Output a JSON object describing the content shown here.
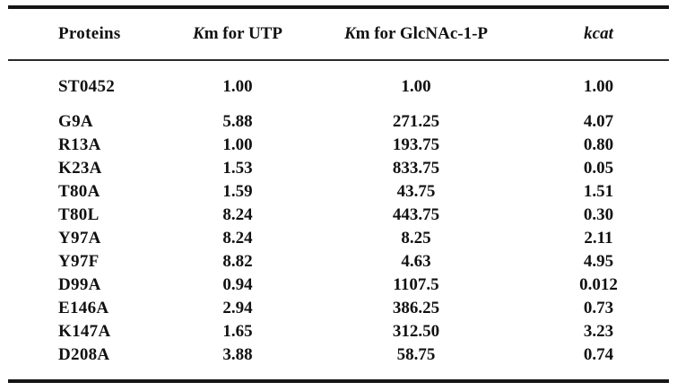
{
  "page": {
    "background": "#ffffff",
    "text_color": "#111111",
    "rule_color": "#151515"
  },
  "table": {
    "headers": [
      {
        "label": "Proteins"
      },
      {
        "italic_prefix": "K",
        "rest": "m for UTP"
      },
      {
        "italic_prefix": "K",
        "rest": "m for GlcNAc-1-P"
      },
      {
        "italic_label": "kcat"
      }
    ],
    "rows": [
      {
        "protein": "ST0452",
        "km_utp": "1.00",
        "km_glcnac": "1.00",
        "kcat": "1.00"
      },
      {
        "protein": "G9A",
        "km_utp": "5.88",
        "km_glcnac": "271.25",
        "kcat": "4.07"
      },
      {
        "protein": "R13A",
        "km_utp": "1.00",
        "km_glcnac": "193.75",
        "kcat": "0.80"
      },
      {
        "protein": "K23A",
        "km_utp": "1.53",
        "km_glcnac": "833.75",
        "kcat": "0.05"
      },
      {
        "protein": "T80A",
        "km_utp": "1.59",
        "km_glcnac": "43.75",
        "kcat": "1.51"
      },
      {
        "protein": "T80L",
        "km_utp": "8.24",
        "km_glcnac": "443.75",
        "kcat": "0.30"
      },
      {
        "protein": "Y97A",
        "km_utp": "8.24",
        "km_glcnac": "8.25",
        "kcat": "2.11"
      },
      {
        "protein": "Y97F",
        "km_utp": "8.82",
        "km_glcnac": "4.63",
        "kcat": "4.95"
      },
      {
        "protein": "D99A",
        "km_utp": "0.94",
        "km_glcnac": "1107.5",
        "kcat": "0.012"
      },
      {
        "protein": "E146A",
        "km_utp": "2.94",
        "km_glcnac": "386.25",
        "kcat": "0.73"
      },
      {
        "protein": "K147A",
        "km_utp": "1.65",
        "km_glcnac": "312.50",
        "kcat": "3.23"
      },
      {
        "protein": "D208A",
        "km_utp": "3.88",
        "km_glcnac": "58.75",
        "kcat": "0.74"
      }
    ]
  }
}
